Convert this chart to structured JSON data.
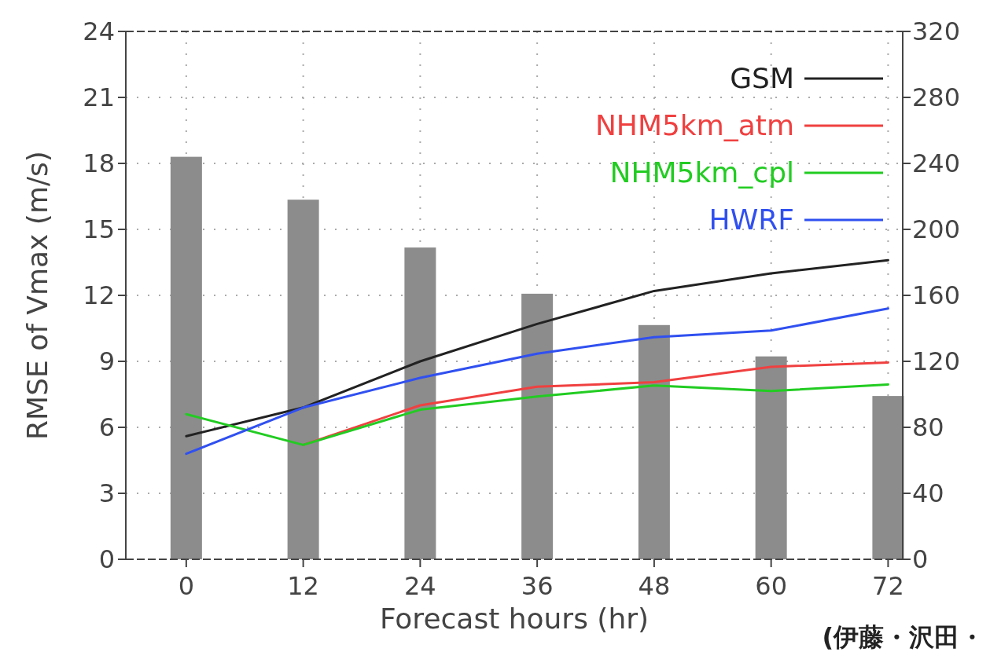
{
  "chart_data": {
    "type": "line",
    "xlabel": "Forecast hours (hr)",
    "ylabel": "RMSE of Vmax (m/s)",
    "annotations": [
      "(伊藤・沢田・"
    ],
    "x": [
      0,
      12,
      24,
      36,
      48,
      60,
      72
    ],
    "xlim": [
      -6.2,
      73.5
    ],
    "xticks": [
      0,
      12,
      24,
      36,
      48,
      60,
      72
    ],
    "ylim": [
      0,
      24
    ],
    "yticks": [
      0,
      3,
      6,
      9,
      12,
      15,
      18,
      21,
      24
    ],
    "y2lim": [
      0,
      320
    ],
    "y2ticks": [
      0,
      40,
      80,
      120,
      160,
      200,
      240,
      280,
      320
    ],
    "grid": true,
    "legend": "top right",
    "series": [
      {
        "type": "bar",
        "axis": "y2",
        "color": "#8c8c8c",
        "values": [
          244,
          218,
          189,
          161,
          142,
          123,
          99
        ]
      },
      {
        "name": "GSM",
        "color": "#222222",
        "values": [
          5.6,
          6.9,
          9.0,
          10.7,
          12.2,
          13.0,
          13.6
        ]
      },
      {
        "name": "NHM5km_atm",
        "color": "#f04040",
        "values": [
          null,
          5.2,
          7.0,
          7.85,
          8.05,
          8.75,
          8.95
        ]
      },
      {
        "name": "NHM5km_cpl",
        "color": "#22cc22",
        "values": [
          6.6,
          5.2,
          6.8,
          7.4,
          7.9,
          7.65,
          7.95
        ]
      },
      {
        "name": "HWRF",
        "color": "#3050f0",
        "values": [
          4.8,
          6.9,
          8.25,
          9.35,
          10.1,
          10.4,
          11.4
        ]
      }
    ]
  }
}
